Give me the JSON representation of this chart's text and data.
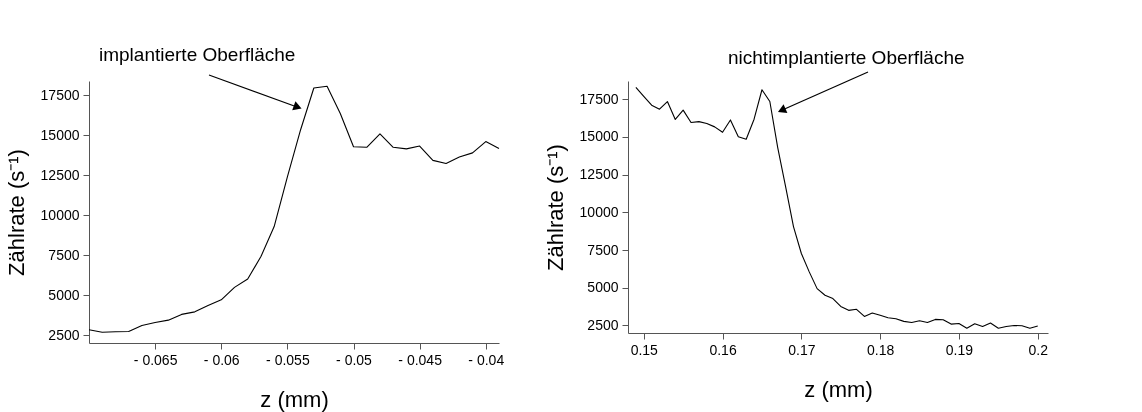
{
  "chart_data": [
    {
      "type": "line",
      "xlabel": "z (mm)",
      "ylabel": "Zählrate (s⁻¹)",
      "annotations": [
        "implantierte Oberfläche"
      ],
      "x": [
        -0.07,
        -0.069,
        -0.068,
        -0.067,
        -0.066,
        -0.065,
        -0.064,
        -0.063,
        -0.062,
        -0.061,
        -0.06,
        -0.059,
        -0.058,
        -0.057,
        -0.056,
        -0.055,
        -0.054,
        -0.053,
        -0.052,
        -0.051,
        -0.05,
        -0.049,
        -0.048,
        -0.047,
        -0.046,
        -0.045,
        -0.044,
        -0.043,
        -0.042,
        -0.041,
        -0.04,
        -0.039
      ],
      "series": [
        {
          "color": "#000000",
          "values": [
            2830,
            2670,
            2700,
            2720,
            3100,
            3280,
            3430,
            3790,
            3950,
            4340,
            4700,
            5480,
            6010,
            7410,
            9290,
            12400,
            15350,
            17960,
            18070,
            16370,
            14280,
            14250,
            15090,
            14250,
            14150,
            14330,
            13430,
            13240,
            13640,
            13900,
            14610,
            14170
          ]
        }
      ],
      "xlim": [
        -0.07,
        -0.039
      ],
      "ylim": [
        2000,
        18400
      ],
      "xticks": [
        {
          "value": -0.065,
          "label": "- 0.065"
        },
        {
          "value": -0.06,
          "label": "- 0.06"
        },
        {
          "value": -0.055,
          "label": "- 0.055"
        },
        {
          "value": -0.05,
          "label": "- 0.05"
        },
        {
          "value": -0.045,
          "label": "- 0.045"
        },
        {
          "value": -0.04,
          "label": "- 0.04"
        }
      ],
      "yticks": [
        2500,
        5000,
        7500,
        10000,
        12500,
        15000,
        17500
      ],
      "grid": false,
      "marker": "none",
      "line_style": "solid"
    },
    {
      "type": "line",
      "xlabel": "z (mm)",
      "ylabel": "Zählrate (s⁻¹)",
      "annotations": [
        "nichtimplantierte Oberfläche"
      ],
      "x": [
        0.149,
        0.15,
        0.151,
        0.152,
        0.153,
        0.154,
        0.155,
        0.156,
        0.157,
        0.158,
        0.159,
        0.16,
        0.161,
        0.162,
        0.163,
        0.164,
        0.165,
        0.166,
        0.167,
        0.168,
        0.169,
        0.17,
        0.171,
        0.172,
        0.173,
        0.174,
        0.175,
        0.176,
        0.177,
        0.178,
        0.179,
        0.18,
        0.181,
        0.182,
        0.183,
        0.184,
        0.185,
        0.186,
        0.187,
        0.188,
        0.189,
        0.19,
        0.191,
        0.192,
        0.193,
        0.194,
        0.195,
        0.196,
        0.197,
        0.198,
        0.199,
        0.2
      ],
      "series": [
        {
          "color": "#000000",
          "values": [
            18280,
            17680,
            17100,
            16830,
            17340,
            16150,
            16770,
            15950,
            16010,
            15880,
            15660,
            15300,
            16120,
            15010,
            14840,
            16170,
            18120,
            17340,
            14280,
            11700,
            9050,
            7270,
            6050,
            4940,
            4500,
            4280,
            3760,
            3500,
            3570,
            3100,
            3320,
            3170,
            3010,
            2940,
            2770,
            2700,
            2810,
            2700,
            2900,
            2880,
            2590,
            2630,
            2320,
            2610,
            2430,
            2660,
            2320,
            2430,
            2500,
            2480,
            2320,
            2460
          ]
        }
      ],
      "xlim": [
        0.148,
        0.2013
      ],
      "ylim": [
        2000,
        18700
      ],
      "xticks": [
        0.15,
        0.16,
        0.17,
        0.18,
        0.19,
        0.2
      ],
      "yticks": [
        2500,
        5000,
        7500,
        10000,
        12500,
        15000,
        17500
      ],
      "grid": false,
      "marker": "none",
      "line_style": "solid"
    }
  ]
}
